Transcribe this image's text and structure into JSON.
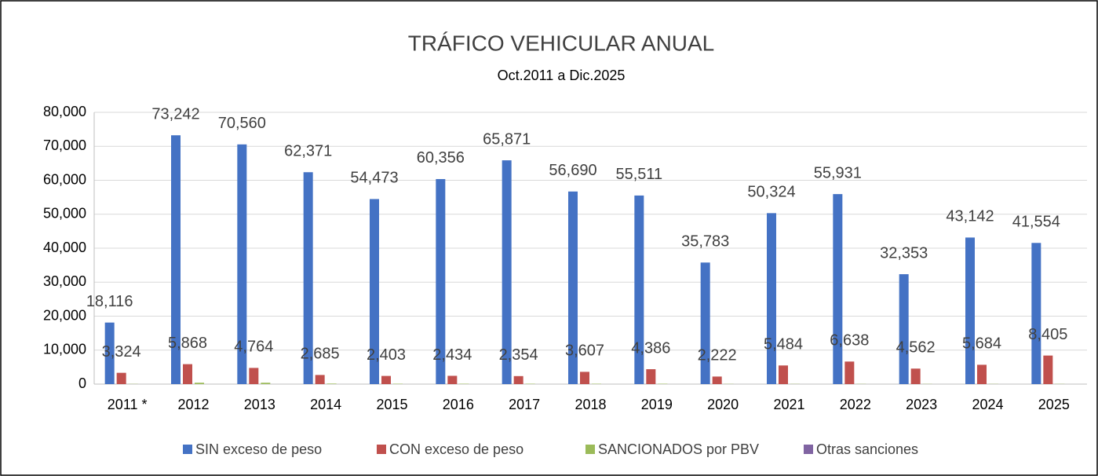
{
  "chart_data": {
    "type": "bar",
    "title": "TRÁFICO VEHICULAR ANUAL",
    "subtitle": "Oct.2011 a Dic.2025",
    "categories": [
      "2011 *",
      "2012",
      "2013",
      "2014",
      "2015",
      "2016",
      "2017",
      "2018",
      "2019",
      "2020",
      "2021",
      "2022",
      "2023",
      "2024",
      "2025"
    ],
    "series": [
      {
        "name": "SIN exceso de peso",
        "color": "#4472c4",
        "values": [
          18116,
          73242,
          70560,
          62371,
          54473,
          60356,
          65871,
          56690,
          55511,
          35783,
          50324,
          55931,
          32353,
          43142,
          41554
        ],
        "value_labels": [
          "18,116",
          "73,242",
          "70,560",
          "62,371",
          "54,473",
          "60,356",
          "65,871",
          "56,690",
          "55,511",
          "35,783",
          "50,324",
          "55,931",
          "32,353",
          "43,142",
          "41,554"
        ]
      },
      {
        "name": "CON exceso de peso",
        "color": "#c0504d",
        "values": [
          3324,
          5868,
          4764,
          2685,
          2403,
          2434,
          2354,
          3607,
          4386,
          2222,
          5484,
          6638,
          4562,
          5684,
          8405
        ],
        "value_labels": [
          "3,324",
          "5,868",
          "4,764",
          "2,685",
          "2,403",
          "2,434",
          "2,354",
          "3,607",
          "4,386",
          "2,222",
          "5,484",
          "6,638",
          "4,562",
          "5,684",
          "8,405"
        ]
      },
      {
        "name": "SANCIONADOS por PBV",
        "color": "#9bbb59",
        "values": [
          50,
          400,
          400,
          150,
          100,
          100,
          100,
          100,
          100,
          50,
          50,
          50,
          50,
          50,
          50
        ]
      },
      {
        "name": "Otras sanciones",
        "color": "#8064a2",
        "values": [
          0,
          0,
          0,
          0,
          0,
          0,
          0,
          0,
          0,
          0,
          0,
          0,
          0,
          0,
          0
        ]
      }
    ],
    "ylim": [
      0,
      80000
    ],
    "yticks": [
      0,
      {
        "value": 10000,
        "label": "10,000"
      },
      {
        "value": 20000,
        "label": "20,000"
      },
      {
        "value": 30000,
        "label": "30,000"
      },
      {
        "value": 40000,
        "label": "40,000"
      },
      {
        "value": 50000,
        "label": "50,000"
      },
      {
        "value": 60000,
        "label": "60,000"
      },
      {
        "value": 70000,
        "label": "70,000"
      },
      {
        "value": 80000,
        "label": "80,000"
      }
    ],
    "grid": true,
    "legend": "bottom"
  }
}
